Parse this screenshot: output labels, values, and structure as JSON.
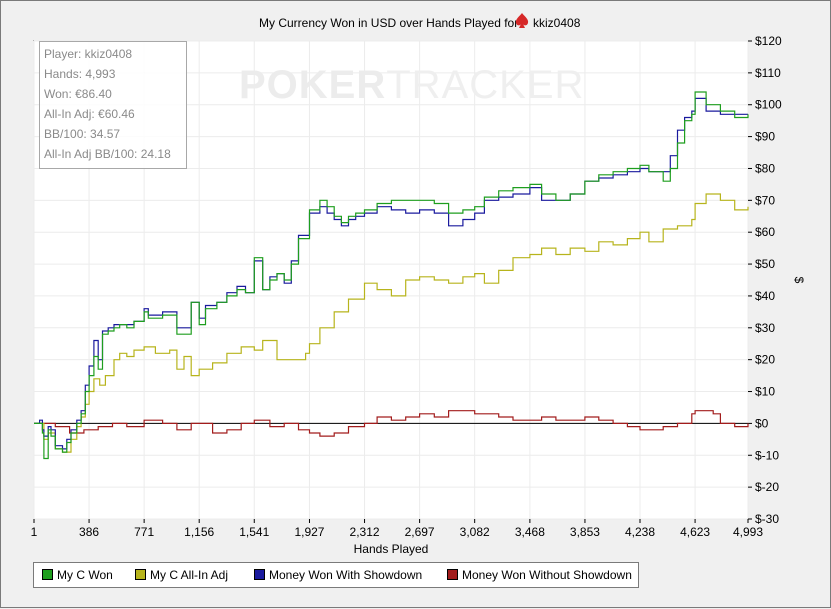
{
  "chart_data": {
    "type": "line",
    "title": "My Currency Won in USD over Hands Played for",
    "player_name": "kkiz0408",
    "xlabel": "Hands Played",
    "ylabel": "$",
    "xlim": [
      1,
      4993
    ],
    "ylim": [
      -30,
      120
    ],
    "x_ticks": [
      1,
      386,
      771,
      1156,
      1541,
      1927,
      2312,
      2697,
      3082,
      3468,
      3853,
      4238,
      4623,
      4993
    ],
    "x_tick_labels": [
      "1",
      "386",
      "771",
      "1,156",
      "1,541",
      "1,927",
      "2,312",
      "2,697",
      "3,082",
      "3,468",
      "3,853",
      "4,238",
      "4,623",
      "4,993"
    ],
    "y_ticks": [
      -30,
      -20,
      -10,
      0,
      10,
      20,
      30,
      40,
      50,
      60,
      70,
      80,
      90,
      100,
      110,
      120
    ],
    "y_tick_labels": [
      "$-30",
      "$-20",
      "$-10",
      "$0",
      "$10",
      "$20",
      "$30",
      "$40",
      "$50",
      "$60",
      "$70",
      "$80",
      "$90",
      "$100",
      "$110",
      "$120"
    ],
    "grid": true,
    "legend_position": "bottom",
    "series": [
      {
        "name": "My C Won",
        "color": "#1e9e1e",
        "x": [
          1,
          40,
          60,
          70,
          100,
          120,
          150,
          200,
          230,
          260,
          300,
          330,
          360,
          386,
          420,
          450,
          480,
          520,
          560,
          600,
          650,
          700,
          771,
          800,
          900,
          1000,
          1100,
          1156,
          1200,
          1280,
          1350,
          1420,
          1480,
          1541,
          1600,
          1650,
          1700,
          1750,
          1800,
          1850,
          1927,
          2000,
          2050,
          2100,
          2150,
          2200,
          2250,
          2312,
          2400,
          2500,
          2600,
          2697,
          2800,
          2900,
          3000,
          3082,
          3150,
          3250,
          3350,
          3468,
          3550,
          3650,
          3750,
          3853,
          3950,
          4050,
          4150,
          4238,
          4300,
          4400,
          4450,
          4500,
          4550,
          4600,
          4623,
          4700,
          4800,
          4900,
          4993
        ],
        "y": [
          0,
          0,
          -3,
          -11,
          -2,
          -4,
          -8,
          -9,
          -6,
          -3,
          0,
          3,
          10,
          15,
          21,
          17,
          28,
          29,
          30,
          31,
          30,
          32,
          35,
          33,
          34,
          28,
          38,
          31,
          36,
          38,
          40,
          42,
          41,
          52,
          42,
          45,
          47,
          45,
          50,
          58,
          67,
          70,
          68,
          65,
          63,
          65,
          66,
          67,
          69,
          70,
          70,
          70,
          69,
          66,
          67,
          68,
          71,
          73,
          74,
          75,
          72,
          70,
          72,
          76,
          78,
          79,
          80,
          81,
          79,
          76,
          80,
          88,
          95,
          97,
          104,
          100,
          98,
          96,
          97
        ]
      },
      {
        "name": "My C All-In Adj",
        "color": "#b7b41c",
        "x": [
          1,
          40,
          70,
          100,
          150,
          200,
          260,
          300,
          330,
          360,
          386,
          420,
          460,
          500,
          560,
          600,
          650,
          700,
          771,
          850,
          950,
          1000,
          1050,
          1100,
          1156,
          1250,
          1350,
          1450,
          1541,
          1600,
          1700,
          1800,
          1900,
          1927,
          2000,
          2100,
          2200,
          2312,
          2400,
          2500,
          2600,
          2697,
          2800,
          2900,
          3000,
          3082,
          3150,
          3250,
          3350,
          3468,
          3550,
          3650,
          3750,
          3853,
          3950,
          4050,
          4150,
          4238,
          4300,
          4400,
          4500,
          4600,
          4623,
          4700,
          4800,
          4900,
          4993
        ],
        "y": [
          0,
          0,
          -5,
          -3,
          -8,
          -9,
          -5,
          -1,
          2,
          6,
          10,
          14,
          12,
          15,
          20,
          22,
          21,
          23,
          24,
          22,
          23,
          17,
          21,
          15,
          17,
          19,
          22,
          24,
          23,
          26,
          20,
          20,
          22,
          25,
          30,
          35,
          39,
          44,
          42,
          40,
          45,
          46,
          45,
          44,
          46,
          47,
          44,
          48,
          52,
          53,
          55,
          53,
          55,
          54,
          57,
          56,
          58,
          60,
          57,
          61,
          62,
          64,
          69,
          72,
          70,
          67,
          68
        ]
      },
      {
        "name": "Money Won With Showdown",
        "color": "#1a1a9e",
        "x": [
          1,
          40,
          60,
          70,
          100,
          120,
          150,
          200,
          230,
          260,
          300,
          330,
          360,
          386,
          420,
          450,
          480,
          520,
          560,
          600,
          650,
          700,
          771,
          800,
          900,
          1000,
          1100,
          1156,
          1200,
          1280,
          1350,
          1420,
          1480,
          1541,
          1600,
          1650,
          1700,
          1750,
          1800,
          1850,
          1927,
          2000,
          2050,
          2100,
          2150,
          2200,
          2250,
          2312,
          2400,
          2500,
          2600,
          2697,
          2800,
          2900,
          3000,
          3082,
          3150,
          3250,
          3350,
          3468,
          3550,
          3650,
          3750,
          3853,
          3950,
          4050,
          4150,
          4238,
          4300,
          4400,
          4450,
          4500,
          4550,
          4600,
          4623,
          4700,
          4800,
          4900,
          4993
        ],
        "y": [
          0,
          1,
          -2,
          -4,
          -1,
          -2,
          -7,
          -8,
          -5,
          -2,
          1,
          4,
          12,
          18,
          26,
          20,
          29,
          30,
          31,
          31,
          31,
          32,
          36,
          34,
          35,
          30,
          38,
          33,
          37,
          38,
          41,
          43,
          41,
          51,
          42,
          46,
          47,
          44,
          51,
          59,
          66,
          68,
          66,
          64,
          62,
          64,
          65,
          66,
          68,
          67,
          66,
          67,
          66,
          62,
          64,
          66,
          70,
          71,
          72,
          74,
          70,
          70,
          72,
          76,
          77,
          78,
          79,
          80,
          79,
          79,
          84,
          92,
          96,
          98,
          102,
          98,
          97,
          97,
          97
        ]
      },
      {
        "name": "Money Won Without Showdown",
        "color": "#a21c1c",
        "x": [
          1,
          80,
          150,
          250,
          350,
          450,
          550,
          650,
          771,
          900,
          1000,
          1100,
          1156,
          1250,
          1350,
          1450,
          1541,
          1650,
          1750,
          1850,
          1927,
          2000,
          2100,
          2200,
          2312,
          2400,
          2500,
          2600,
          2697,
          2800,
          2900,
          3000,
          3082,
          3150,
          3250,
          3350,
          3468,
          3550,
          3650,
          3750,
          3853,
          3950,
          4050,
          4150,
          4238,
          4300,
          4400,
          4500,
          4600,
          4623,
          4700,
          4750,
          4800,
          4900,
          4993
        ],
        "y": [
          0,
          0,
          -1,
          -3,
          -2,
          -1,
          0,
          -1,
          1,
          0,
          -2,
          0,
          0,
          -3,
          -2,
          0,
          1,
          -1,
          0,
          -2,
          -3,
          -4,
          -3,
          -1,
          0,
          2,
          1,
          2,
          3,
          2,
          4,
          4,
          3,
          3,
          2,
          1,
          1,
          2,
          1,
          1,
          2,
          1,
          0,
          -1,
          -2,
          -2,
          -1,
          0,
          3,
          4,
          4,
          3,
          0,
          -1,
          0
        ]
      }
    ]
  },
  "stats": {
    "player": "Player: kkiz0408",
    "hands": "Hands: 4,993",
    "won": "Won: €86.40",
    "allin_adj": "All-In Adj: €60.46",
    "bb100": "BB/100: 34.57",
    "allin_bb100": "All-In Adj BB/100: 24.18"
  },
  "watermark": {
    "bold": "POKER",
    "light": "TRACKER"
  },
  "icons": {
    "title_icon": "spade-icon",
    "title_icon_color": "#d62828"
  }
}
